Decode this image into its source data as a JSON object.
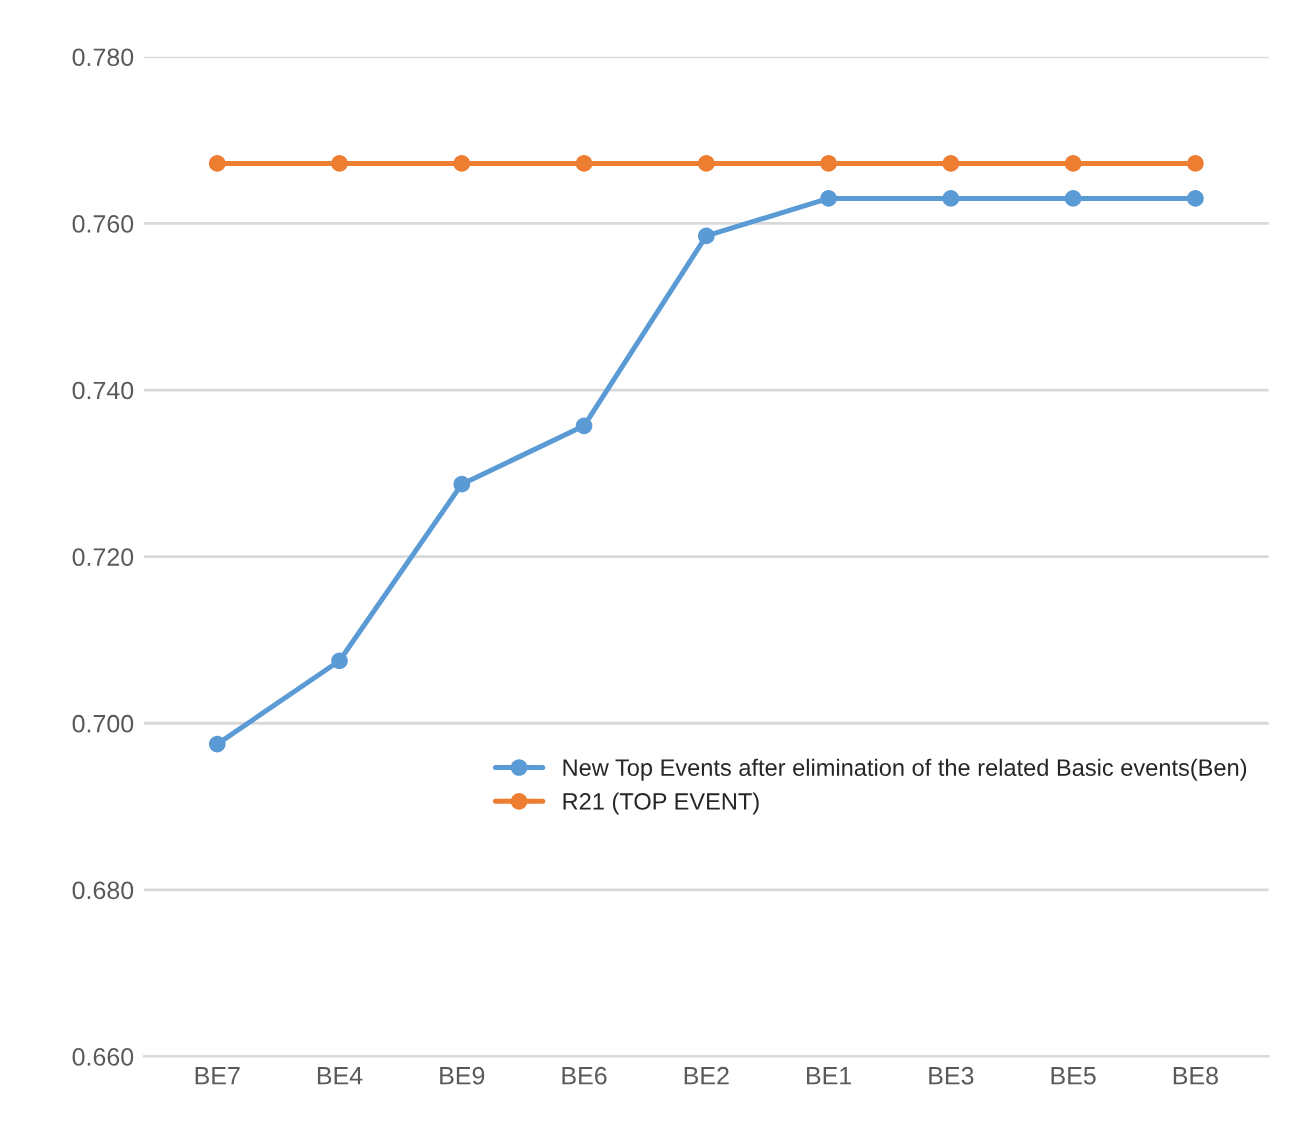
{
  "chart_data": {
    "type": "line",
    "categories": [
      "BE7",
      "BE4",
      "BE9",
      "BE6",
      "BE2",
      "BE1",
      "BE3",
      "BE5",
      "BE8"
    ],
    "series": [
      {
        "name": "New Top Events after elimination of the related Basic events(Ben)",
        "color": "#5b9bd5",
        "values": [
          0.6975,
          0.7075,
          0.7287,
          0.7357,
          0.7585,
          0.763,
          0.763,
          0.763,
          0.763
        ]
      },
      {
        "name": "R21 (TOP EVENT)",
        "color": "#ed7d31",
        "values": [
          0.7672,
          0.7672,
          0.7672,
          0.7672,
          0.7672,
          0.7672,
          0.7672,
          0.7672,
          0.7672
        ]
      }
    ],
    "ylim": [
      0.66,
      0.78
    ],
    "yticks": [
      {
        "value": 0.66,
        "label": "0.660"
      },
      {
        "value": 0.68,
        "label": "0.680"
      },
      {
        "value": 0.7,
        "label": "0.700"
      },
      {
        "value": 0.72,
        "label": "0.720"
      },
      {
        "value": 0.74,
        "label": "0.740"
      },
      {
        "value": 0.76,
        "label": "0.760"
      },
      {
        "value": 0.78,
        "label": "0.780"
      }
    ],
    "grid": "y",
    "legend": "right",
    "marker": "circle",
    "line_style": "solid"
  }
}
